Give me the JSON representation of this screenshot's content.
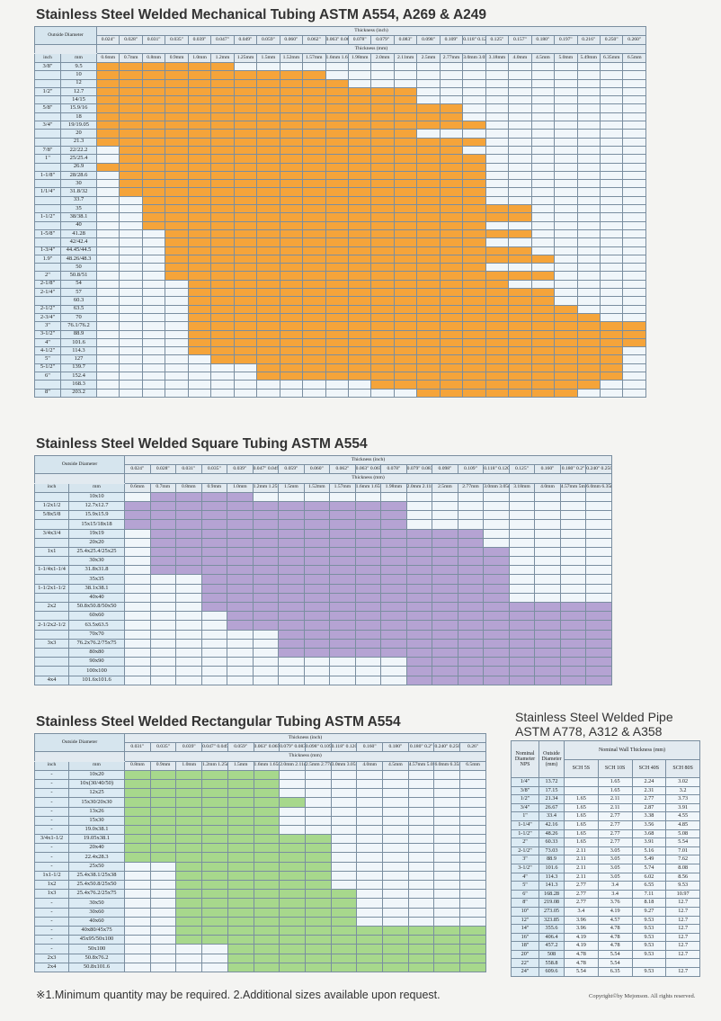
{
  "mech": {
    "title": "Stainless Steel Welded Mechanical Tubing ASTM A554, A269 & A249",
    "outside_diameter": "Outside Diameter",
    "thickness_inch_label": "Thickness (inch)",
    "thickness_mm_label": "Thickness (mm)",
    "inch_label": "inch",
    "mm_label": "mm",
    "thick_inch": [
      "0.024\"",
      "0.028\"",
      "0.031\"",
      "0.035\"",
      "0.039\"",
      "0.047\"",
      "0.049\"",
      "0.059\"",
      "0.060\"",
      "0.062\"",
      "0.063\" 0.065\"",
      "0.078\"",
      "0.079\"",
      "0.083\"",
      "0.098\"",
      "0.109\"",
      "0.118\" 0.120\"",
      "0.125\"",
      "0.157\"",
      "0.180\"",
      "0.197\"",
      "0.216\"",
      "0.250\"",
      "0.260\""
    ],
    "thick_mm": [
      "0.6mm",
      "0.7mm",
      "0.8mm",
      "0.9mm",
      "1.0mm",
      "1.2mm",
      "1.25mm",
      "1.5mm",
      "1.52mm",
      "1.57mm",
      "1.6mm 1.65mm",
      "1.98mm",
      "2.0mm",
      "2.11mm",
      "2.5mm",
      "2.77mm",
      "3.0mm 3.05mm",
      "3.18mm",
      "4.0mm",
      "4.5mm",
      "5.0mm",
      "5.49mm",
      "6.35mm",
      "6.5mm"
    ],
    "rows": [
      {
        "inch": "3/8\"",
        "mm": "9.5",
        "s": 0,
        "e": 5
      },
      {
        "inch": "",
        "mm": "10",
        "s": 0,
        "e": 9
      },
      {
        "inch": "",
        "mm": "12",
        "s": 0,
        "e": 10
      },
      {
        "inch": "1/2\"",
        "mm": "12.7",
        "s": 0,
        "e": 13
      },
      {
        "inch": "",
        "mm": "14/15",
        "s": 0,
        "e": 13
      },
      {
        "inch": "5/8\"",
        "mm": "15.9/16",
        "s": 0,
        "e": 15
      },
      {
        "inch": "",
        "mm": "18",
        "s": 0,
        "e": 15
      },
      {
        "inch": "3/4\"",
        "mm": "19/19.05",
        "s": 0,
        "e": 16
      },
      {
        "inch": "",
        "mm": "20",
        "s": 0,
        "e": 13
      },
      {
        "inch": "",
        "mm": "21.3",
        "s": 0,
        "e": 16
      },
      {
        "inch": "7/8\"",
        "mm": "22/22.2",
        "s": 1,
        "e": 15
      },
      {
        "inch": "1\"",
        "mm": "25/25.4",
        "s": 1,
        "e": 16
      },
      {
        "inch": "",
        "mm": "26.9",
        "s": 0,
        "e": 16
      },
      {
        "inch": "1-1/8\"",
        "mm": "28/28.6",
        "s": 1,
        "e": 16
      },
      {
        "inch": "",
        "mm": "30",
        "s": 1,
        "e": 16
      },
      {
        "inch": "1/1/4\"",
        "mm": "31.8/32",
        "s": 1,
        "e": 16
      },
      {
        "inch": "",
        "mm": "33.7",
        "s": 2,
        "e": 16
      },
      {
        "inch": "",
        "mm": "35",
        "s": 2,
        "e": 18
      },
      {
        "inch": "1-1/2\"",
        "mm": "38/38.1",
        "s": 2,
        "e": 18
      },
      {
        "inch": "",
        "mm": "40",
        "s": 2,
        "e": 16
      },
      {
        "inch": "1-5/8\"",
        "mm": "41.28",
        "s": 3,
        "e": 18
      },
      {
        "inch": "",
        "mm": "42/42.4",
        "s": 3,
        "e": 16
      },
      {
        "inch": "1-3/4\"",
        "mm": "44.45/44.5",
        "s": 3,
        "e": 18
      },
      {
        "inch": "1.9\"",
        "mm": "48.26/48.3",
        "s": 3,
        "e": 19
      },
      {
        "inch": "",
        "mm": "50",
        "s": 3,
        "e": 16
      },
      {
        "inch": "2\"",
        "mm": "50.8/51",
        "s": 3,
        "e": 19
      },
      {
        "inch": "2-1/8\"",
        "mm": "54",
        "s": 4,
        "e": 17
      },
      {
        "inch": "2-1/4\"",
        "mm": "57",
        "s": 4,
        "e": 19
      },
      {
        "inch": "",
        "mm": "60.3",
        "s": 4,
        "e": 19
      },
      {
        "inch": "2-1/2\"",
        "mm": "63.5",
        "s": 4,
        "e": 20
      },
      {
        "inch": "2-3/4\"",
        "mm": "70",
        "s": 4,
        "e": 21
      },
      {
        "inch": "3\"",
        "mm": "76.1/76.2",
        "s": 4,
        "e": 23
      },
      {
        "inch": "3-1/2\"",
        "mm": "88.9",
        "s": 4,
        "e": 23
      },
      {
        "inch": "4\"",
        "mm": "101.6",
        "s": 4,
        "e": 23
      },
      {
        "inch": "4-1/2\"",
        "mm": "114.3",
        "s": 4,
        "e": 22
      },
      {
        "inch": "5\"",
        "mm": "127",
        "s": 5,
        "e": 22
      },
      {
        "inch": "5-1/2\"",
        "mm": "139.7",
        "s": 7,
        "e": 22
      },
      {
        "inch": "6\"",
        "mm": "152.4",
        "s": 7,
        "e": 22
      },
      {
        "inch": "",
        "mm": "168.3",
        "s": 12,
        "e": 21
      },
      {
        "inch": "8\"",
        "mm": "203.2",
        "s": 14,
        "e": 20
      }
    ]
  },
  "square": {
    "title": "Stainless Steel Welded Square Tubing ASTM A554",
    "outside_diameter": "Outside Diameter",
    "thickness_inch_label": "Thickness (inch)",
    "thickness_mm_label": "Thickness (mm)",
    "inch_label": "inch",
    "mm_label": "mm",
    "thick_inch": [
      "0.024\"",
      "0.028\"",
      "0.031\"",
      "0.035\"",
      "0.039\"",
      "0.047\" 0.049\"",
      "0.059\"",
      "0.060\"",
      "0.062\"",
      "0.063\" 0.065\"",
      "0.078\"",
      "0.079\" 0.083\"",
      "0.098\"",
      "0.109\"",
      "0.118\" 0.120\"",
      "0.125\"",
      "0.160\"",
      "0.180\" 0.2\"",
      "0.240\" 0.250\""
    ],
    "thick_mm": [
      "0.6mm",
      "0.7mm",
      "0.8mm",
      "0.9mm",
      "1.0mm",
      "1.2mm 1.25mm",
      "1.5mm",
      "1.52mm",
      "1.57mm",
      "1.6mm 1.65mm",
      "1.98mm",
      "2.0mm 2.11mm",
      "2.5mm",
      "2.77mm",
      "3.0mm 3.05mm",
      "3.18mm",
      "4.0mm",
      "4.57mm 5mm",
      "6.0mm 6.35mm"
    ],
    "rows": [
      {
        "inch": "",
        "mm": "10x10",
        "s": 1,
        "e": 4
      },
      {
        "inch": "1/2x1/2",
        "mm": "12.7x12.7",
        "s": 0,
        "e": 10
      },
      {
        "inch": "5/8x5/8",
        "mm": "15.9x15.9",
        "s": 0,
        "e": 10
      },
      {
        "inch": "",
        "mm": "15x15/18x18",
        "s": 0,
        "e": 10
      },
      {
        "inch": "3/4x3/4",
        "mm": "19x19",
        "s": 1,
        "e": 13
      },
      {
        "inch": "",
        "mm": "20x20",
        "s": 1,
        "e": 13
      },
      {
        "inch": "1x1",
        "mm": "25.4x25.4/25x25",
        "s": 1,
        "e": 14
      },
      {
        "inch": "",
        "mm": "30x30",
        "s": 1,
        "e": 14
      },
      {
        "inch": "1-1/4x1-1/4",
        "mm": "31.8x31.8",
        "s": 1,
        "e": 14
      },
      {
        "inch": "",
        "mm": "35x35",
        "s": 3,
        "e": 14
      },
      {
        "inch": "1-1/2x1-1/2",
        "mm": "38.1x38.1",
        "s": 3,
        "e": 14
      },
      {
        "inch": "",
        "mm": "40x40",
        "s": 3,
        "e": 14
      },
      {
        "inch": "2x2",
        "mm": "50.8x50.8/50x50",
        "s": 3,
        "e": 18
      },
      {
        "inch": "",
        "mm": "60x60",
        "s": 4,
        "e": 18
      },
      {
        "inch": "2-1/2x2-1/2",
        "mm": "63.5x63.5",
        "s": 4,
        "e": 18
      },
      {
        "inch": "",
        "mm": "70x70",
        "s": 6,
        "e": 18
      },
      {
        "inch": "3x3",
        "mm": "76.2x76.2/75x75",
        "s": 6,
        "e": 18
      },
      {
        "inch": "",
        "mm": "80x80",
        "s": 6,
        "e": 18
      },
      {
        "inch": "",
        "mm": "90x90",
        "s": 11,
        "e": 18
      },
      {
        "inch": "",
        "mm": "100x100",
        "s": 11,
        "e": 18
      },
      {
        "inch": "4x4",
        "mm": "101.6x101.6",
        "s": 11,
        "e": 18
      }
    ]
  },
  "rect": {
    "title": "Stainless Steel Welded Rectangular Tubing ASTM A554",
    "outside_diameter": "Outside Diameter",
    "thickness_inch_label": "Thickness (inch)",
    "thickness_mm_label": "Thickness (mm)",
    "inch_label": "inch",
    "mm_label": "mm",
    "thick_inch": [
      "0.031\"",
      "0.035\"",
      "0.039\"",
      "0.047\" 0.049\"",
      "0.059\"",
      "0.063\" 0.065\"",
      "0.079\" 0.083\"",
      "0.098\" 0.109\"",
      "0.118\" 0.120\"",
      "0.160\"",
      "0.180\"",
      "0.180\" 0.2\"",
      "0.240\" 0.250\"",
      "0.26\""
    ],
    "thick_mm": [
      "0.8mm",
      "0.9mm",
      "1.0mm",
      "1.2mm 1.25mm",
      "1.5mm",
      "1.6mm 1.65mm",
      "2.0mm 2.11mm",
      "2.5mm 2.77mm",
      "3.0mm 3.05mm",
      "4.0mm",
      "4.5mm",
      "4.57mm 5.0mm",
      "6.0mm 6.35mm",
      "6.5mm"
    ],
    "rows": [
      {
        "inch": "-",
        "mm": "10x20",
        "s": 0,
        "e": 5
      },
      {
        "inch": "-",
        "mm": "10x(30/40/50)",
        "s": 0,
        "e": 5
      },
      {
        "inch": "-",
        "mm": "12x25",
        "s": 0,
        "e": 5
      },
      {
        "inch": "-",
        "mm": "15x30/20x30",
        "s": 0,
        "e": 6
      },
      {
        "inch": "-",
        "mm": "13x26",
        "s": 0,
        "e": 5
      },
      {
        "inch": "-",
        "mm": "15x30",
        "s": 0,
        "e": 5
      },
      {
        "inch": "-",
        "mm": "19.0x38.1",
        "s": 0,
        "e": 5
      },
      {
        "inch": "3/4x1-1/2",
        "mm": "19.05x38.1",
        "s": 0,
        "e": 7
      },
      {
        "inch": "-",
        "mm": "20x40",
        "s": 0,
        "e": 7
      },
      {
        "inch": "-",
        "mm": "22.4x28.3",
        "s": 0,
        "e": 7
      },
      {
        "inch": "-",
        "mm": "25x50",
        "s": 2,
        "e": 7
      },
      {
        "inch": "1x1-1/2",
        "mm": "25.4x38.1/25x38",
        "s": 2,
        "e": 7
      },
      {
        "inch": "1x2",
        "mm": "25.4x50.8/25x50",
        "s": 2,
        "e": 7
      },
      {
        "inch": "1x3",
        "mm": "25.4x76.2/25x75",
        "s": 2,
        "e": 8
      },
      {
        "inch": "-",
        "mm": "30x50",
        "s": 2,
        "e": 8
      },
      {
        "inch": "-",
        "mm": "30x60",
        "s": 2,
        "e": 8
      },
      {
        "inch": "-",
        "mm": "40x60",
        "s": 2,
        "e": 8
      },
      {
        "inch": "-",
        "mm": "40x80/45x75",
        "s": 2,
        "e": 13
      },
      {
        "inch": "-",
        "mm": "45x95/50x100",
        "s": 2,
        "e": 13
      },
      {
        "inch": "-",
        "mm": "50x100",
        "s": 4,
        "e": 13
      },
      {
        "inch": "2x3",
        "mm": "50.8x76.2",
        "s": 4,
        "e": 13
      },
      {
        "inch": "2x4",
        "mm": "50.8x101.6",
        "s": 4,
        "e": 13
      }
    ]
  },
  "pipe": {
    "title_line1": "Stainless Steel Welded Pipe",
    "title_line2": "ASTM A778, A312 & A358",
    "head_nps": "Nominal Diameter NPS",
    "head_od": "Outside Diameter (mm)",
    "head_wall": "Nominal Wall Thickness (mm)",
    "schedules": [
      "SCH 5S",
      "SCH 10S",
      "SCH 40S",
      "SCH 80S"
    ],
    "rows": [
      [
        "1/4\"",
        "13.72",
        "",
        "1.65",
        "2.24",
        "3.02"
      ],
      [
        "3/8\"",
        "17.15",
        "",
        "1.65",
        "2.31",
        "3.2"
      ],
      [
        "1/2\"",
        "21.34",
        "1.65",
        "2.11",
        "2.77",
        "3.73"
      ],
      [
        "3/4\"",
        "26.67",
        "1.65",
        "2.11",
        "2.87",
        "3.91"
      ],
      [
        "1\"",
        "33.4",
        "1.65",
        "2.77",
        "3.38",
        "4.55"
      ],
      [
        "1-1/4\"",
        "42.16",
        "1.65",
        "2.77",
        "3.56",
        "4.85"
      ],
      [
        "1-1/2\"",
        "48.26",
        "1.65",
        "2.77",
        "3.68",
        "5.08"
      ],
      [
        "2\"",
        "60.33",
        "1.65",
        "2.77",
        "3.91",
        "5.54"
      ],
      [
        "2-1/2\"",
        "73.03",
        "2.11",
        "3.05",
        "5.16",
        "7.01"
      ],
      [
        "3\"",
        "88.9",
        "2.11",
        "3.05",
        "5.49",
        "7.62"
      ],
      [
        "3-1/2\"",
        "101.6",
        "2.11",
        "3.05",
        "5.74",
        "8.08"
      ],
      [
        "4\"",
        "114.3",
        "2.11",
        "3.05",
        "6.02",
        "8.56"
      ],
      [
        "5\"",
        "141.3",
        "2.77",
        "3.4",
        "6.55",
        "9.53"
      ],
      [
        "6\"",
        "168.28",
        "2.77",
        "3.4",
        "7.11",
        "10.97"
      ],
      [
        "8\"",
        "219.08",
        "2.77",
        "3.76",
        "8.18",
        "12.7"
      ],
      [
        "10\"",
        "273.05",
        "3.4",
        "4.19",
        "9.27",
        "12.7"
      ],
      [
        "12\"",
        "323.85",
        "3.96",
        "4.57",
        "9.53",
        "12.7"
      ],
      [
        "14\"",
        "355.6",
        "3.96",
        "4.78",
        "9.53",
        "12.7"
      ],
      [
        "16\"",
        "406.4",
        "4.19",
        "4.78",
        "9.53",
        "12.7"
      ],
      [
        "18\"",
        "457.2",
        "4.19",
        "4.78",
        "9.53",
        "12.7"
      ],
      [
        "20\"",
        "508",
        "4.78",
        "5.54",
        "9.53",
        "12.7"
      ],
      [
        "22\"",
        "558.8",
        "4.78",
        "5.54",
        "",
        ""
      ],
      [
        "24\"",
        "609.6",
        "5.54",
        "6.35",
        "9.53",
        "12.7"
      ]
    ]
  },
  "footer": {
    "note": "※1.Minimum quantity may be required.  2.Additional sizes available upon request.",
    "copyright": "Copyright©by Mejonson. All rights reserved."
  },
  "colors": {
    "mechanical": "#f5a43a",
    "square": "#b5a3d3",
    "rectangular": "#a7d88c"
  }
}
